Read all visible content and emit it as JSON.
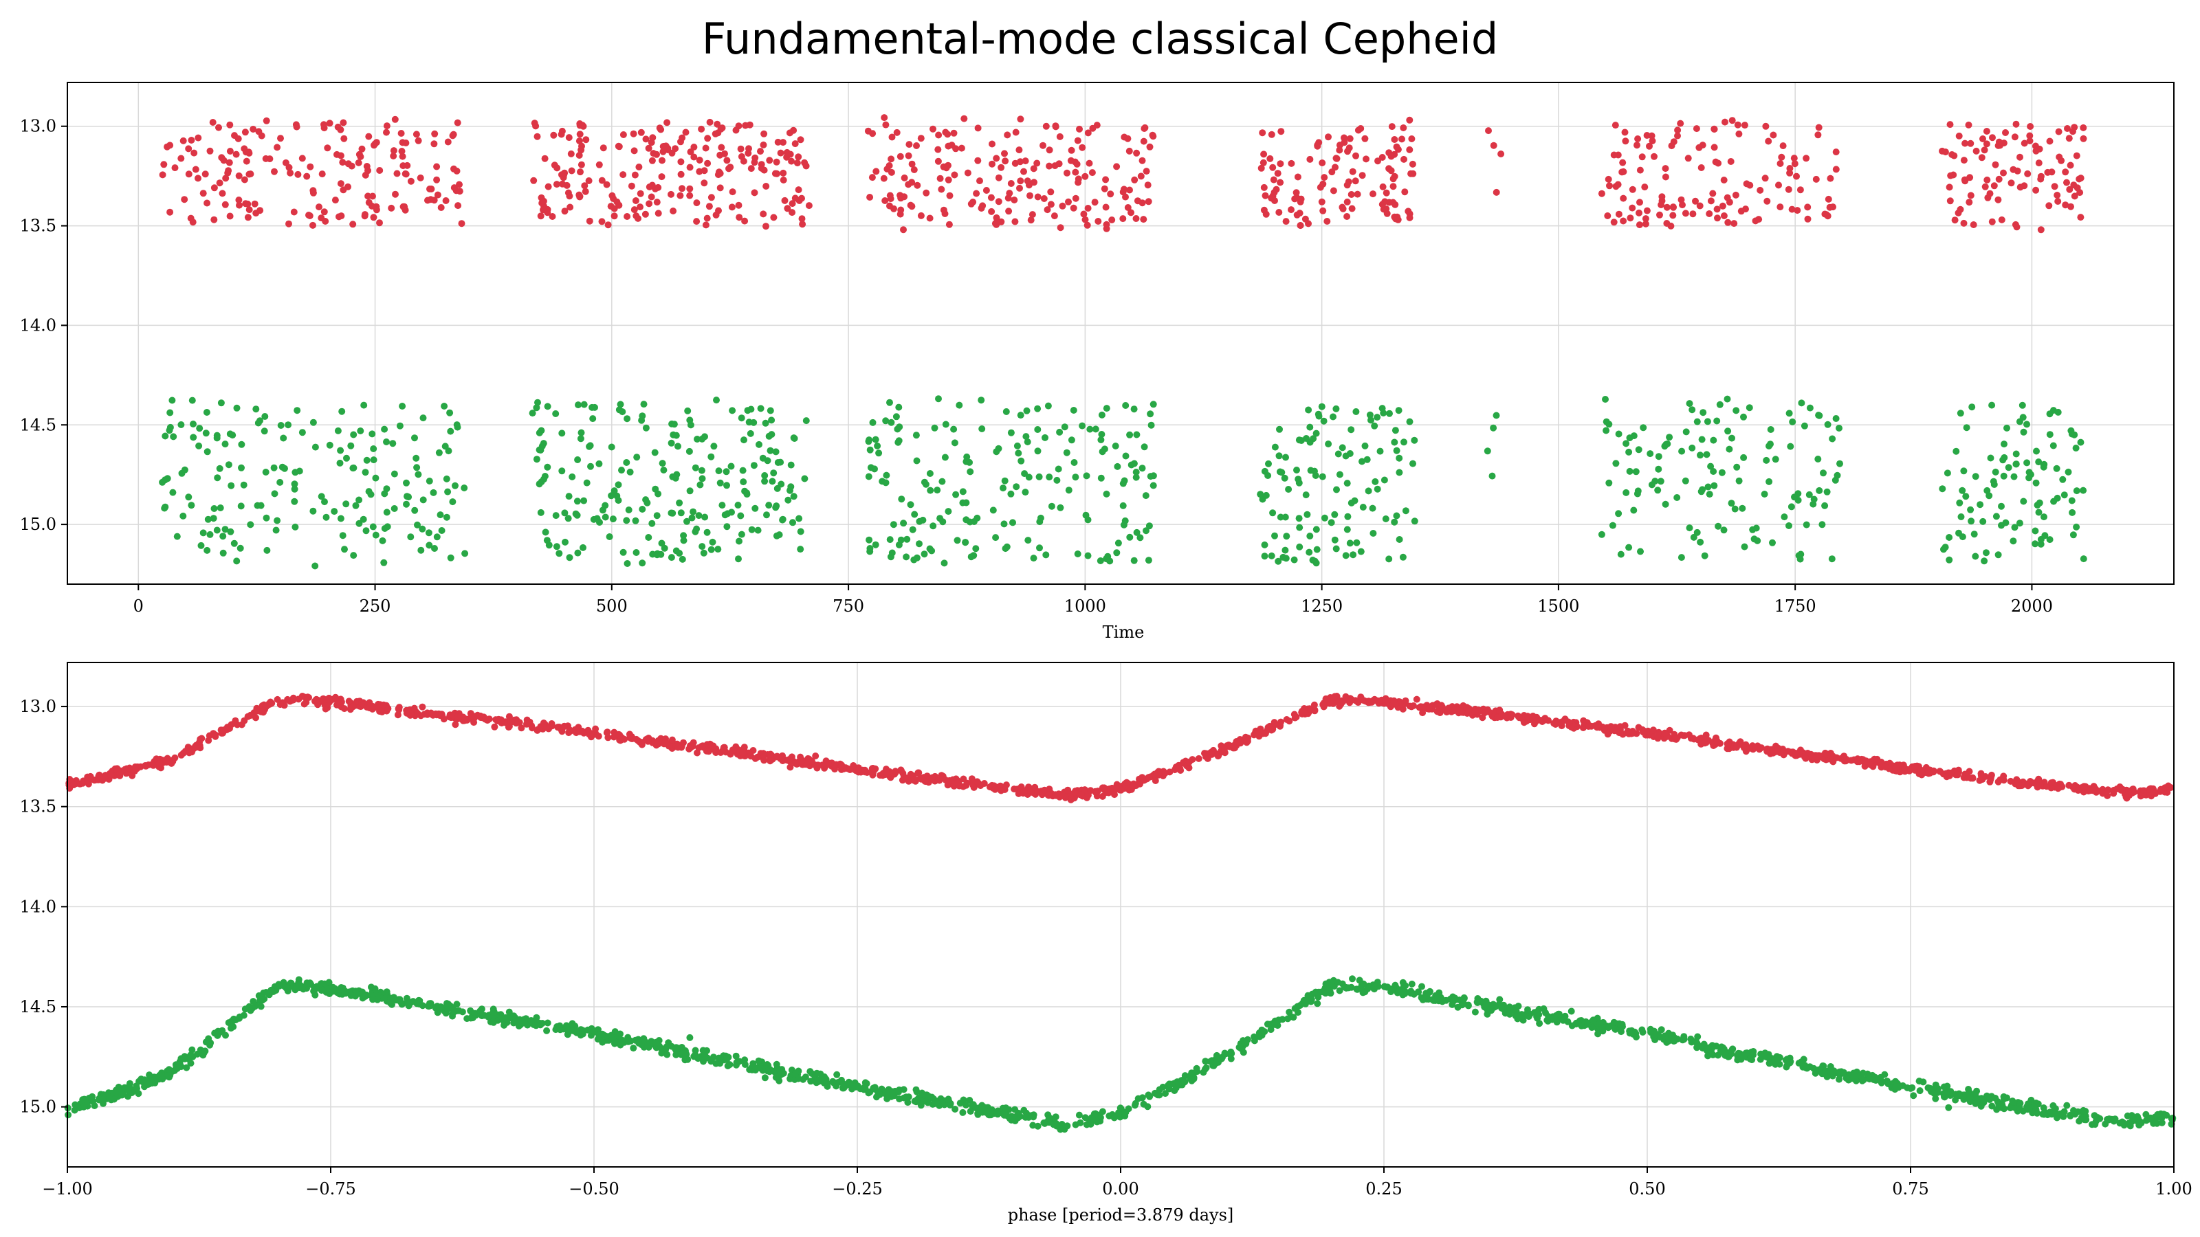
{
  "figure": {
    "title": "Fundamental-mode classical Cepheid"
  },
  "chart_data": [
    {
      "type": "scatter",
      "title": "",
      "xlabel": "Time",
      "ylabel": "",
      "xlim": [
        -75,
        2150
      ],
      "ylim": [
        15.3,
        12.78
      ],
      "y_inverted": true,
      "grid": true,
      "xticks": [
        0,
        250,
        500,
        750,
        1000,
        1250,
        1500,
        1750,
        2000
      ],
      "xtick_labels": [
        "0",
        "250",
        "500",
        "750",
        "1000",
        "1250",
        "1500",
        "1750",
        "2000"
      ],
      "yticks": [
        13.0,
        13.5,
        14.0,
        14.5,
        15.0
      ],
      "ytick_labels": [
        "13.0",
        "13.5",
        "14.0",
        "14.5",
        "15.0"
      ],
      "period_days": 3.879,
      "observing_windows": [
        [
          25,
          345
        ],
        [
          415,
          710
        ],
        [
          770,
          1075
        ],
        [
          1185,
          1350
        ],
        [
          1425,
          1440
        ],
        [
          1545,
          1800
        ],
        [
          1905,
          2055
        ]
      ],
      "series": [
        {
          "color": "#dc3545",
          "mean": 13.24,
          "amplitude": 0.52,
          "points_per_window": [
            180,
            220,
            190,
            120,
            4,
            130,
            100
          ]
        },
        {
          "color": "#28a745",
          "mean": 14.79,
          "amplitude": 0.8,
          "points_per_window": [
            180,
            220,
            190,
            120,
            4,
            130,
            100
          ]
        }
      ]
    },
    {
      "type": "scatter",
      "title": "",
      "xlabel": "phase [period=3.879 days]",
      "ylabel": "",
      "xlim": [
        -1.0,
        1.0
      ],
      "ylim": [
        15.3,
        12.78
      ],
      "y_inverted": true,
      "grid": true,
      "xticks": [
        -1.0,
        -0.75,
        -0.5,
        -0.25,
        0.0,
        0.25,
        0.5,
        0.75,
        1.0
      ],
      "xtick_labels": [
        "−1.00",
        "−0.75",
        "−0.50",
        "−0.25",
        "0.00",
        "0.25",
        "0.50",
        "0.75",
        "1.00"
      ],
      "yticks": [
        13.0,
        13.5,
        14.0,
        14.5,
        15.0
      ],
      "ytick_labels": [
        "13.0",
        "13.5",
        "14.0",
        "14.5",
        "15.0"
      ],
      "light_curve_shape": {
        "phase": [
          -1.0,
          -0.9,
          -0.8,
          -0.75,
          -0.5,
          -0.25,
          -0.05,
          0.0,
          0.1,
          0.2,
          0.25,
          0.5,
          0.75,
          0.95,
          1.0
        ],
        "level": [
          0.85,
          0.6,
          0.03,
          0.05,
          0.35,
          0.7,
          0.95,
          0.88,
          0.5,
          0.03,
          0.05,
          0.35,
          0.7,
          0.93,
          0.9
        ]
      },
      "series": [
        {
          "color": "#dc3545",
          "min_mag": 12.95,
          "max_mag": 13.47,
          "points": 1600
        },
        {
          "color": "#28a745",
          "min_mag": 14.37,
          "max_mag": 15.13,
          "points": 1600
        }
      ]
    }
  ]
}
